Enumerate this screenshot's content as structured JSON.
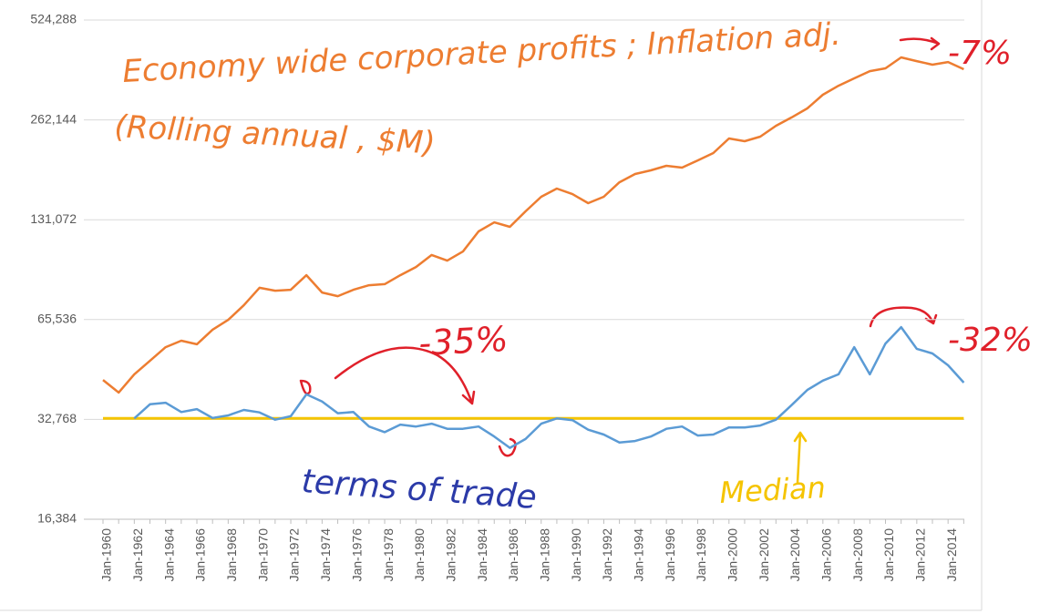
{
  "chart_data": {
    "type": "line",
    "log_scale": true,
    "grid": true,
    "categories": [
      "Jan-1960",
      null,
      "Jan-1962",
      null,
      "Jan-1964",
      null,
      "Jan-1966",
      null,
      "Jan-1968",
      null,
      "Jan-1970",
      null,
      "Jan-1972",
      null,
      "Jan-1974",
      null,
      "Jan-1976",
      null,
      "Jan-1978",
      null,
      "Jan-1980",
      null,
      "Jan-1982",
      null,
      "Jan-1984",
      null,
      "Jan-1986",
      null,
      "Jan-1988",
      null,
      "Jan-1990",
      null,
      "Jan-1992",
      null,
      "Jan-1994",
      null,
      "Jan-1996",
      null,
      "Jan-1998",
      null,
      "Jan-2000",
      null,
      "Jan-2002",
      null,
      "Jan-2004",
      null,
      "Jan-2006",
      null,
      "Jan-2008",
      null,
      "Jan-2010",
      null,
      "Jan-2012",
      null,
      "Jan-2014",
      null
    ],
    "series": [
      {
        "color": "#ed7d31",
        "values": [
          43100,
          39500,
          44800,
          49200,
          54100,
          56600,
          55200,
          61100,
          65400,
          72400,
          81700,
          80100,
          80600,
          89200,
          79100,
          77100,
          80600,
          83200,
          83800,
          89200,
          94400,
          102600,
          98700,
          105100,
          120900,
          128700,
          124800,
          138900,
          153700,
          162700,
          156600,
          147100,
          153700,
          170000,
          180000,
          184700,
          190600,
          188200,
          197900,
          208200,
          230400,
          226100,
          233300,
          251600,
          266600,
          283900,
          312200,
          332400,
          349700,
          367800,
          374900,
          404500,
          394300,
          384600,
          391800,
          372500
        ]
      },
      {
        "color": "#5b9bd5",
        "values": [
          null,
          null,
          33000,
          36400,
          36800,
          34500,
          35200,
          33100,
          33700,
          35000,
          34400,
          32700,
          33500,
          39000,
          37100,
          34200,
          34500,
          31200,
          30000,
          31600,
          31200,
          31800,
          30700,
          30700,
          31200,
          29100,
          26900,
          28600,
          31800,
          33000,
          32600,
          30500,
          29500,
          27900,
          28200,
          29100,
          30700,
          31200,
          29300,
          29500,
          31000,
          31000,
          31400,
          32700,
          36200,
          40200,
          42900,
          44800,
          54100,
          44800,
          55500,
          62200,
          53500,
          51800,
          47700,
          42300
        ]
      }
    ],
    "reference_line": {
      "value": 33000,
      "color": "#f5c400"
    },
    "ylim": [
      16384,
      524288
    ],
    "yticks": [
      {
        "value": 16384,
        "label": "16,384"
      },
      {
        "value": 32768,
        "label": "32,768"
      },
      {
        "value": 65536,
        "label": "65,536"
      },
      {
        "value": 131072,
        "label": "131,072"
      },
      {
        "value": 262144,
        "label": "262,144"
      },
      {
        "value": 524288,
        "label": "524,288"
      }
    ],
    "annotations": [
      {
        "text": "Economy wide corporate profits ; Inflation adj.",
        "color": "#ed7d31"
      },
      {
        "text": "(Rolling annual ,  $M)",
        "color": "#ed7d31"
      },
      {
        "text": "-7%",
        "color": "#e0202a"
      },
      {
        "text": "-35%",
        "color": "#e0202a"
      },
      {
        "text": "-32%",
        "color": "#e0202a"
      },
      {
        "text": "terms of trade",
        "color": "#2b3aa8"
      },
      {
        "text": "Median",
        "color": "#f5c400"
      }
    ]
  }
}
